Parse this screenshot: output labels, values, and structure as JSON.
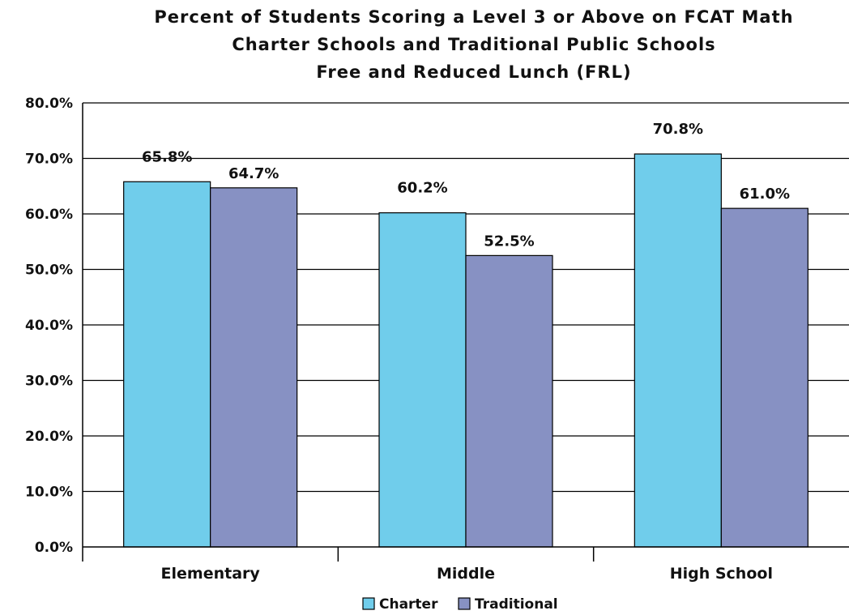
{
  "chart_data": {
    "type": "bar",
    "title_lines": [
      "Percent of Students Scoring a Level 3 or Above on FCAT Math",
      "Charter Schools and Traditional Public Schools",
      "Free and Reduced Lunch (FRL)"
    ],
    "xlabel": "",
    "ylabel": "",
    "categories": [
      "Elementary",
      "Middle",
      "High School"
    ],
    "series": [
      {
        "name": "Charter",
        "color": "#70CDEB",
        "values": [
          65.8,
          60.2,
          70.8
        ],
        "value_labels": [
          "65.8%",
          "60.2%",
          "70.8%"
        ]
      },
      {
        "name": "Traditional",
        "color": "#8791C3",
        "values": [
          64.7,
          52.5,
          61.0
        ],
        "value_labels": [
          "64.7%",
          "52.5%",
          "61.0%"
        ]
      }
    ],
    "ylim": [
      0,
      80
    ],
    "yticks": [
      0,
      10,
      20,
      30,
      40,
      50,
      60,
      70,
      80
    ],
    "ytick_labels": [
      "0.0%",
      "10.0%",
      "20.0%",
      "30.0%",
      "40.0%",
      "50.0%",
      "60.0%",
      "70.0%",
      "80.0%"
    ],
    "grid": true,
    "legend_position": "bottom-center"
  }
}
